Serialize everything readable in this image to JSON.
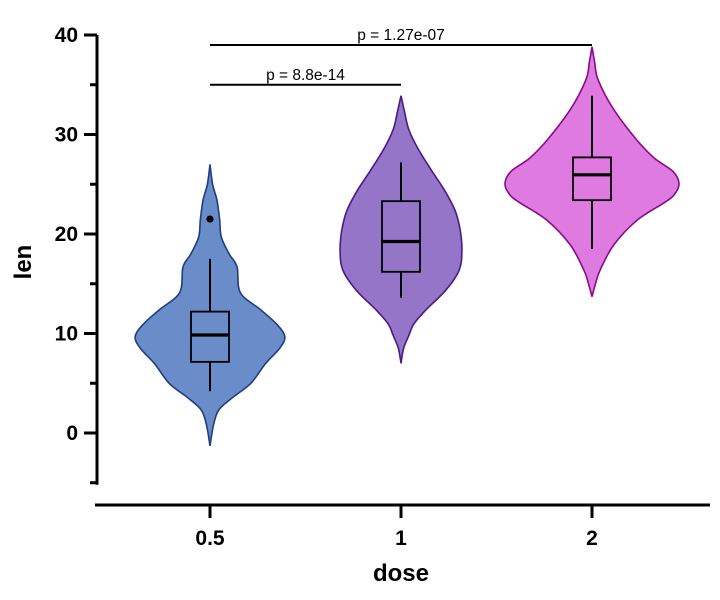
{
  "chart_data": {
    "type": "violin",
    "title": "",
    "xlabel": "dose",
    "ylabel": "len",
    "ylim": [
      -5,
      40
    ],
    "yticks": [
      0,
      10,
      20,
      30,
      40
    ],
    "yminor_ticks": [
      -5,
      5,
      15,
      25,
      35
    ],
    "grid": false,
    "categories": [
      "0.5",
      "1",
      "2"
    ],
    "series": [
      {
        "category": "0.5",
        "fill": "#6a8cc8",
        "stroke": "#1f3d80",
        "violin_range": [
          -1.3,
          27.0
        ],
        "density_profile": [
          [
            27.0,
            0
          ],
          [
            25,
            0.03
          ],
          [
            23.4,
            0.08
          ],
          [
            21.5,
            0.11
          ],
          [
            19.7,
            0.13
          ],
          [
            18,
            0.22
          ],
          [
            16.7,
            0.31
          ],
          [
            14.1,
            0.35
          ],
          [
            12.4,
            0.58
          ],
          [
            11,
            0.76
          ],
          [
            9.7,
            0.86
          ],
          [
            8.5,
            0.8
          ],
          [
            7,
            0.64
          ],
          [
            5,
            0.47
          ],
          [
            3.5,
            0.25
          ],
          [
            2.3,
            0.1
          ],
          [
            0.8,
            0.04
          ],
          [
            -1.3,
            0
          ]
        ],
        "box": {
          "whisker_low": 4.2,
          "q1": 7.15,
          "median": 9.85,
          "q3": 12.2,
          "whisker_high": 17.5
        },
        "outliers": [
          21.5
        ]
      },
      {
        "category": "1",
        "fill": "#9475c8",
        "stroke": "#4a1a85",
        "violin_range": [
          7.0,
          33.9
        ],
        "density_profile": [
          [
            33.9,
            0
          ],
          [
            32.3,
            0.04
          ],
          [
            30.5,
            0.09
          ],
          [
            28.5,
            0.2
          ],
          [
            26.4,
            0.35
          ],
          [
            24.4,
            0.5
          ],
          [
            22.4,
            0.62
          ],
          [
            20.4,
            0.68
          ],
          [
            18.4,
            0.7
          ],
          [
            16.4,
            0.67
          ],
          [
            14.4,
            0.52
          ],
          [
            12.4,
            0.29
          ],
          [
            11,
            0.15
          ],
          [
            9.8,
            0.09
          ],
          [
            8.5,
            0.03
          ],
          [
            7.0,
            0
          ]
        ],
        "box": {
          "whisker_low": 13.6,
          "q1": 16.2,
          "median": 19.25,
          "q3": 23.3,
          "whisker_high": 27.2
        },
        "outliers": []
      },
      {
        "category": "2",
        "fill": "#df7ae0",
        "stroke": "#8a0a8a",
        "violin_range": [
          13.7,
          38.8
        ],
        "density_profile": [
          [
            38.8,
            0
          ],
          [
            37.3,
            0.03
          ],
          [
            35.5,
            0.07
          ],
          [
            32.5,
            0.25
          ],
          [
            29.4,
            0.52
          ],
          [
            27.6,
            0.72
          ],
          [
            26.3,
            0.93
          ],
          [
            25.1,
            1.0
          ],
          [
            24,
            0.95
          ],
          [
            23.2,
            0.84
          ],
          [
            21.4,
            0.52
          ],
          [
            18.9,
            0.25
          ],
          [
            16.3,
            0.09
          ],
          [
            15,
            0.04
          ],
          [
            13.7,
            0
          ]
        ],
        "box": {
          "whisker_low": 18.5,
          "q1": 23.4,
          "median": 25.95,
          "q3": 27.7,
          "whisker_high": 33.9
        },
        "outliers": []
      }
    ],
    "annotations": [
      {
        "from": "0.5",
        "to": "1",
        "y": 35,
        "label": "p = 8.8e-14"
      },
      {
        "from": "0.5",
        "to": "2",
        "y": 39,
        "label": "p = 1.27e-07"
      }
    ]
  }
}
